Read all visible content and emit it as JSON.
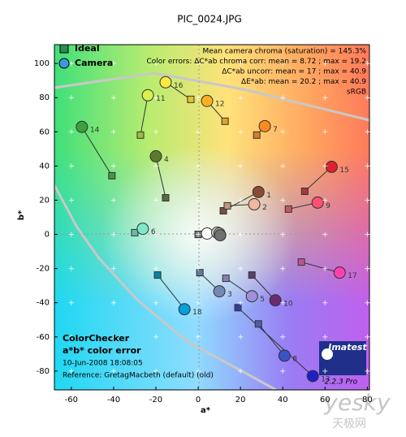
{
  "chart_data": {
    "type": "scatter",
    "title": "PIC_0024.JPG",
    "x_label": "a*",
    "y_label": "b*",
    "xlim": [
      -68,
      81
    ],
    "ylim": [
      -91,
      111
    ],
    "xticks": [
      -60,
      -40,
      -20,
      0,
      20,
      40,
      60,
      80
    ],
    "yticks": [
      -80,
      -60,
      -40,
      -20,
      0,
      20,
      40,
      60,
      80,
      100
    ],
    "grid": true,
    "legend_position": "upper left",
    "info_lines": [
      "Mean camera chroma (saturation) = 145.3%",
      "Color errors: ΔC*ab chroma corr:  mean = 8.72 ;  max = 19.2",
      "ΔC*ab uncorr:  mean = 17 ;  max = 40.9",
      "ΔE*ab:  mean = 20.2 ;  max = 40.9",
      "sRGB"
    ],
    "notes": [
      "ColorChecker",
      "a*b* color error",
      "10-Jun-2008 18:08:05",
      "Reference: GretagMacbeth (default) (old)"
    ],
    "logo": "Imatest",
    "version": "2.2.3  Pro",
    "watermark": "yesky",
    "watermark_sub": "天极网",
    "point_labels": [
      "1",
      "2",
      "3",
      "4",
      "5",
      "6",
      "7",
      "8",
      "9",
      "10",
      "11",
      "12",
      "13",
      "14",
      "15",
      "16",
      "17",
      "18",
      null,
      null,
      null,
      null
    ],
    "series": [
      {
        "name": "Ideal",
        "marker": "square",
        "color": "#2e8b57",
        "x": [
          11.9,
          13.8,
          0.8,
          -15.4,
          13.1,
          -30,
          27.7,
          28.5,
          42.7,
          25.4,
          -27.3,
          12.7,
          18.8,
          -40.8,
          50.4,
          -3.5,
          48.8,
          -19.2,
          0,
          0,
          0,
          0
        ],
        "values": [
          13.8,
          16.7,
          -22.4,
          21.4,
          -25.7,
          1,
          58.1,
          -52.4,
          14.8,
          -23.8,
          58.1,
          66.2,
          -42.9,
          34.3,
          25.2,
          79,
          -16.2,
          -23.8,
          0,
          0,
          0,
          0
        ],
        "point_colors": [
          "#735244",
          "#c29682",
          "#627a9d",
          "#576c43",
          "#8580b1",
          "#67bdaa",
          "#d67e2c",
          "#505ba6",
          "#c15a63",
          "#5e3c6c",
          "#9dbc40",
          "#e0a32e",
          "#383d96",
          "#469449",
          "#af363c",
          "#e7c71f",
          "#bb5695",
          "#0885a1",
          "#f3f3f2",
          "#c8c8c8",
          "#a0a0a0",
          "#7a7a79"
        ]
      },
      {
        "name": "Camera",
        "marker": "circle",
        "color": "#3a9ad9",
        "x": [
          28.5,
          26.5,
          10,
          -20,
          25.4,
          -26.2,
          31.5,
          40.8,
          56.5,
          36.5,
          -23.8,
          4.2,
          54.2,
          -55,
          63.1,
          -15.4,
          66.9,
          -6.5,
          4.2,
          9,
          10,
          10.4
        ],
        "values": [
          24.8,
          17.6,
          -33.3,
          45.7,
          -36.2,
          3.3,
          63.3,
          -71,
          18.6,
          -38.6,
          81.4,
          78.1,
          -82.9,
          62.9,
          39.5,
          89,
          -22.4,
          -43.8,
          0.5,
          1,
          0.5,
          -0.5
        ],
        "point_colors": [
          "#8a4a33",
          "#f0b8a0",
          "#7488b8",
          "#5a7a30",
          "#a090d8",
          "#7ee8c8",
          "#ff8a20",
          "#3c50c8",
          "#ff5070",
          "#6a2a70",
          "#d8f050",
          "#ffb020",
          "#1a20c8",
          "#3aa040",
          "#e02030",
          "#ffe840",
          "#ff40b0",
          "#00a0d8",
          "#ffffff",
          "#e0e0e0",
          "#b0b0b0",
          "#707070"
        ]
      }
    ]
  }
}
